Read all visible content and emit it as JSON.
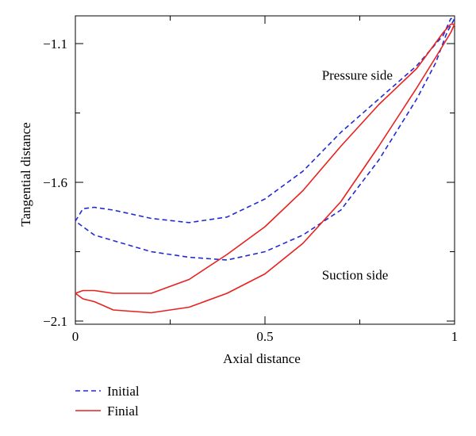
{
  "chart_data": {
    "type": "line",
    "title": "",
    "xlabel": "Axial distance",
    "ylabel": "Tangential distance",
    "xlim": [
      0,
      1
    ],
    "ylim": [
      -2.1,
      -1.0
    ],
    "x_ticks": [
      0,
      0.5,
      1
    ],
    "x_tick_labels": [
      "0",
      "0.5",
      "1"
    ],
    "y_ticks": [
      -1.1,
      -1.6,
      -2.1
    ],
    "y_tick_labels": [
      "−1.1",
      "−1.6",
      "−2.1"
    ],
    "grid": false,
    "legend_position": "bottom-left",
    "annotations": [
      {
        "text": "Pressure side",
        "x": 0.65,
        "y": -1.23
      },
      {
        "text": "Suction side",
        "x": 0.65,
        "y": -1.95
      }
    ],
    "series": [
      {
        "name": "Initial",
        "color": "#1f2bd6",
        "dash": "dashed",
        "points": [
          [
            0.0,
            -1.74
          ],
          [
            0.02,
            -1.695
          ],
          [
            0.05,
            -1.69
          ],
          [
            0.1,
            -1.7
          ],
          [
            0.2,
            -1.73
          ],
          [
            0.3,
            -1.745
          ],
          [
            0.4,
            -1.725
          ],
          [
            0.5,
            -1.66
          ],
          [
            0.6,
            -1.56
          ],
          [
            0.7,
            -1.42
          ],
          [
            0.8,
            -1.3
          ],
          [
            0.9,
            -1.18
          ],
          [
            0.97,
            -1.07
          ],
          [
            0.99,
            -1.01
          ],
          [
            1.0,
            -1.01
          ],
          [
            0.98,
            -1.06
          ],
          [
            0.95,
            -1.17
          ],
          [
            0.9,
            -1.3
          ],
          [
            0.8,
            -1.52
          ],
          [
            0.7,
            -1.7
          ],
          [
            0.6,
            -1.79
          ],
          [
            0.5,
            -1.85
          ],
          [
            0.4,
            -1.88
          ],
          [
            0.3,
            -1.87
          ],
          [
            0.2,
            -1.85
          ],
          [
            0.1,
            -1.81
          ],
          [
            0.05,
            -1.79
          ],
          [
            0.0,
            -1.74
          ]
        ]
      },
      {
        "name": "Finial",
        "color": "#e8211f",
        "dash": "solid",
        "points": [
          [
            0.0,
            -2.0
          ],
          [
            0.02,
            -1.99
          ],
          [
            0.05,
            -1.99
          ],
          [
            0.1,
            -2.0
          ],
          [
            0.2,
            -2.0
          ],
          [
            0.3,
            -1.95
          ],
          [
            0.4,
            -1.86
          ],
          [
            0.5,
            -1.76
          ],
          [
            0.6,
            -1.63
          ],
          [
            0.7,
            -1.47
          ],
          [
            0.8,
            -1.32
          ],
          [
            0.9,
            -1.19
          ],
          [
            0.97,
            -1.06
          ],
          [
            0.99,
            -1.03
          ],
          [
            1.0,
            -1.03
          ],
          [
            0.99,
            -1.06
          ],
          [
            0.95,
            -1.15
          ],
          [
            0.9,
            -1.26
          ],
          [
            0.8,
            -1.47
          ],
          [
            0.7,
            -1.67
          ],
          [
            0.6,
            -1.82
          ],
          [
            0.5,
            -1.93
          ],
          [
            0.4,
            -2.0
          ],
          [
            0.3,
            -2.05
          ],
          [
            0.2,
            -2.07
          ],
          [
            0.1,
            -2.06
          ],
          [
            0.05,
            -2.03
          ],
          [
            0.02,
            -2.02
          ],
          [
            0.0,
            -2.0
          ]
        ]
      }
    ]
  }
}
